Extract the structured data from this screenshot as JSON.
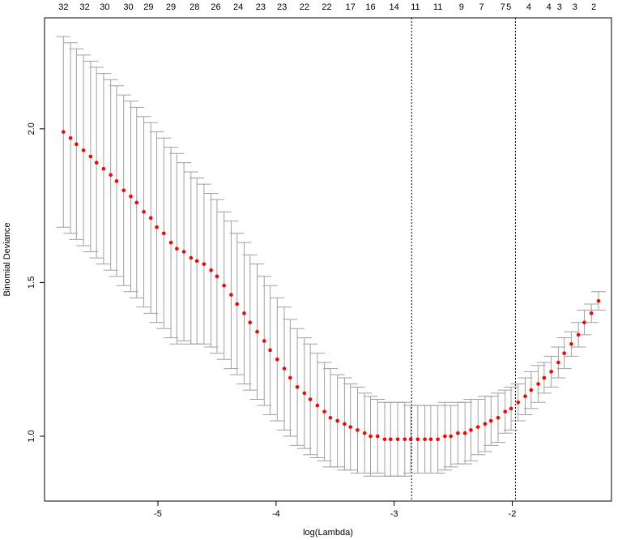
{
  "chart_data": {
    "type": "errorbar",
    "xlabel": "log(Lambda)",
    "ylabel": "Binomial Deviance",
    "xlim": [
      -5.96,
      -1.16
    ],
    "ylim": [
      0.789,
      2.361
    ],
    "xticks": [
      -5,
      -4,
      -3,
      -2
    ],
    "yticks": [
      {
        "value": 1,
        "label": "1.0"
      },
      1.5,
      {
        "value": 2,
        "label": "2.0"
      }
    ],
    "color": "#ff0000",
    "errorbar_color": "#a0a0a0",
    "vlines": [
      -2.852,
      -1.973
    ],
    "top_labels": {
      "x": [
        -5.8,
        -5.62,
        -5.45,
        -5.25,
        -5.08,
        -4.89,
        -4.69,
        -4.51,
        -4.32,
        -4.13,
        -3.95,
        -3.76,
        -3.57,
        -3.37,
        -3.2,
        -3.0,
        -2.82,
        -2.63,
        -2.43,
        -2.26,
        -2.08,
        -2.03,
        -1.86,
        -1.69,
        -1.6,
        -1.47,
        -1.31
      ],
      "labels": [
        32,
        32,
        30,
        30,
        29,
        29,
        28,
        26,
        24,
        23,
        23,
        22,
        22,
        17,
        16,
        14,
        11,
        11,
        9,
        7,
        7,
        5,
        4,
        4,
        3,
        3,
        2
      ]
    },
    "x": [
      -5.8,
      -5.74,
      -5.69,
      -5.63,
      -5.57,
      -5.52,
      -5.46,
      -5.4,
      -5.35,
      -5.29,
      -5.23,
      -5.18,
      -5.12,
      -5.06,
      -5.01,
      -4.95,
      -4.89,
      -4.84,
      -4.78,
      -4.72,
      -4.67,
      -4.61,
      -4.55,
      -4.5,
      -4.44,
      -4.38,
      -4.33,
      -4.27,
      -4.22,
      -4.16,
      -4.1,
      -4.05,
      -3.99,
      -3.93,
      -3.88,
      -3.82,
      -3.76,
      -3.71,
      -3.65,
      -3.59,
      -3.54,
      -3.48,
      -3.42,
      -3.37,
      -3.31,
      -3.25,
      -3.2,
      -3.14,
      -3.08,
      -3.03,
      -2.97,
      -2.91,
      -2.86,
      -2.8,
      -2.74,
      -2.69,
      -2.63,
      -2.57,
      -2.52,
      -2.46,
      -2.4,
      -2.35,
      -2.29,
      -2.23,
      -2.18,
      -2.12,
      -2.06,
      -2.01,
      -1.95,
      -1.89,
      -1.84,
      -1.78,
      -1.73,
      -1.67,
      -1.61,
      -1.56,
      -1.5,
      -1.44,
      -1.39,
      -1.33,
      -1.27
    ],
    "values": [
      1.99,
      1.97,
      1.95,
      1.93,
      1.91,
      1.89,
      1.87,
      1.85,
      1.83,
      1.8,
      1.78,
      1.76,
      1.73,
      1.71,
      1.68,
      1.66,
      1.63,
      1.61,
      1.6,
      1.58,
      1.57,
      1.56,
      1.54,
      1.52,
      1.49,
      1.46,
      1.43,
      1.4,
      1.37,
      1.34,
      1.31,
      1.28,
      1.25,
      1.22,
      1.19,
      1.16,
      1.14,
      1.12,
      1.1,
      1.08,
      1.06,
      1.05,
      1.04,
      1.03,
      1.02,
      1.01,
      1.0,
      1.0,
      0.99,
      0.99,
      0.99,
      0.99,
      0.99,
      0.99,
      0.99,
      0.99,
      0.99,
      1.0,
      1.0,
      1.01,
      1.01,
      1.02,
      1.03,
      1.04,
      1.05,
      1.06,
      1.08,
      1.09,
      1.11,
      1.13,
      1.15,
      1.17,
      1.19,
      1.21,
      1.24,
      1.27,
      1.3,
      1.33,
      1.37,
      1.4,
      1.44
    ],
    "errors": [
      0.31,
      0.31,
      0.31,
      0.31,
      0.31,
      0.31,
      0.31,
      0.31,
      0.31,
      0.31,
      0.31,
      0.31,
      0.31,
      0.31,
      0.31,
      0.31,
      0.31,
      0.31,
      0.29,
      0.28,
      0.27,
      0.26,
      0.25,
      0.25,
      0.24,
      0.24,
      0.23,
      0.23,
      0.22,
      0.22,
      0.21,
      0.21,
      0.2,
      0.2,
      0.19,
      0.19,
      0.18,
      0.18,
      0.17,
      0.16,
      0.16,
      0.15,
      0.15,
      0.14,
      0.14,
      0.13,
      0.13,
      0.12,
      0.12,
      0.12,
      0.12,
      0.12,
      0.11,
      0.11,
      0.11,
      0.11,
      0.11,
      0.11,
      0.1,
      0.1,
      0.1,
      0.1,
      0.09,
      0.09,
      0.08,
      0.08,
      0.07,
      0.07,
      0.06,
      0.06,
      0.06,
      0.06,
      0.05,
      0.05,
      0.05,
      0.05,
      0.04,
      0.04,
      0.04,
      0.03,
      0.03
    ]
  }
}
